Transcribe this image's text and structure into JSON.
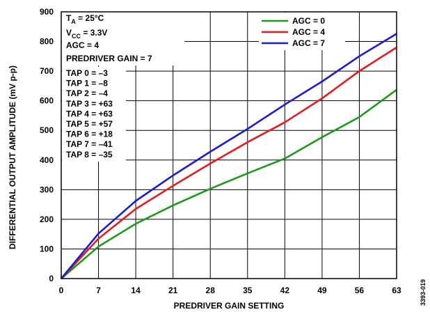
{
  "chart_data": {
    "type": "line",
    "xlabel": "PREDRIVER GAIN SETTING",
    "ylabel": "DIFFERENTIAL OUTPUT AMPLITUDE (mV p-p)",
    "x_ticks": [
      0,
      7,
      14,
      21,
      28,
      35,
      42,
      49,
      56,
      63
    ],
    "y_ticks": [
      0,
      100,
      200,
      300,
      400,
      500,
      600,
      700,
      800,
      900
    ],
    "xlim": [
      0,
      63
    ],
    "ylim": [
      0,
      900
    ],
    "grid": true,
    "legend_position": "top-right",
    "x": [
      0,
      7,
      14,
      21,
      28,
      35,
      42,
      49,
      56,
      63
    ],
    "series": [
      {
        "name": "AGC = 0",
        "color": "#1a9a1a",
        "values": [
          0,
          108,
          185,
          247,
          303,
          355,
          405,
          477,
          545,
          637
        ]
      },
      {
        "name": "AGC = 4",
        "color": "#e8191a",
        "values": [
          0,
          135,
          235,
          313,
          388,
          460,
          527,
          608,
          700,
          780
        ]
      },
      {
        "name": "AGC = 7",
        "color": "#1a1ad8",
        "values": [
          0,
          152,
          262,
          348,
          428,
          505,
          587,
          665,
          750,
          826
        ]
      }
    ],
    "annotations": {
      "ta_main": "T",
      "ta_sub": "A",
      "ta_rest": " = 25°C",
      "vcc_main": "V",
      "vcc_sub": "CC",
      "vcc_rest": " = 3.3V",
      "agc": "AGC = 4",
      "predriver": "PREDRIVER GAIN = 7",
      "taps": [
        "TAP 0 = –3",
        "TAP 1 = –8",
        "TAP 2 = –4",
        "TAP 3 = +63",
        "TAP 4 = +63",
        "TAP 5 = +57",
        "TAP 6 = +18",
        "TAP 7 = –41",
        "TAP 8 = –35"
      ]
    },
    "figure_id": "3393-019"
  }
}
